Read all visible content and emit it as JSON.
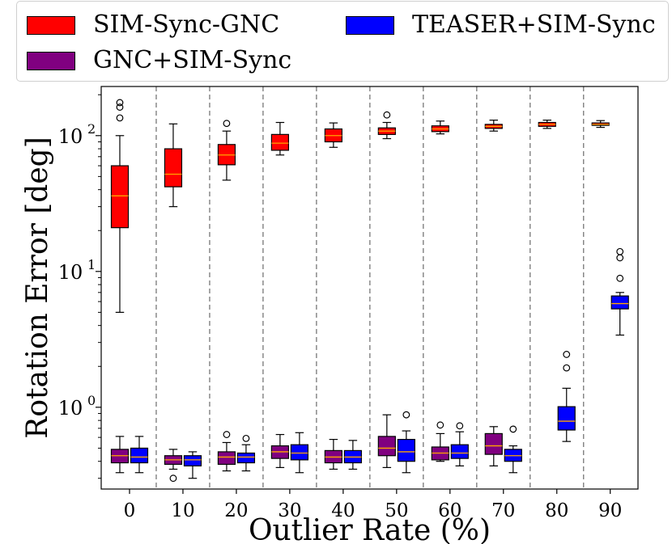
{
  "chart_data": {
    "type": "boxplot",
    "xlabel": "Outlier Rate (%)",
    "ylabel": "Rotation Error [deg]",
    "yscale": "log",
    "ylim": [
      0.25,
      230
    ],
    "categories": [
      "0",
      "10",
      "20",
      "30",
      "40",
      "50",
      "60",
      "70",
      "80",
      "90"
    ],
    "y_ticks": [
      {
        "value": 1,
        "base": "10",
        "exp": "0"
      },
      {
        "value": 10,
        "base": "10",
        "exp": "1"
      },
      {
        "value": 100,
        "base": "10",
        "exp": "2"
      }
    ],
    "legend": {
      "position": "top",
      "entries": [
        {
          "label": "SIM-Sync-GNC",
          "color": "#ff0000"
        },
        {
          "label": "TEASER+SIM-Sync",
          "color": "#0000ff"
        },
        {
          "label": "GNC+SIM-Sync",
          "color": "#800080"
        }
      ]
    },
    "median_color": "#ffa500",
    "series": [
      {
        "name": "SIM-Sync-GNC",
        "color": "#ff0000",
        "boxes": [
          {
            "category": "0",
            "whislo": 5.0,
            "q1": 21.0,
            "med": 36.0,
            "q3": 60.0,
            "whishi": 100.0,
            "fliers": [
              135,
              162,
              175
            ]
          },
          {
            "category": "10",
            "whislo": 30.0,
            "q1": 42.0,
            "med": 52.0,
            "q3": 80.0,
            "whishi": 122.0,
            "fliers": []
          },
          {
            "category": "20",
            "whislo": 47.0,
            "q1": 61.0,
            "med": 72.0,
            "q3": 86.0,
            "whishi": 108.0,
            "fliers": [
              123
            ]
          },
          {
            "category": "30",
            "whislo": 72.0,
            "q1": 78.0,
            "med": 88.0,
            "q3": 102.0,
            "whishi": 125.0,
            "fliers": []
          },
          {
            "category": "40",
            "whislo": 82.0,
            "q1": 90.0,
            "med": 100.0,
            "q3": 112.0,
            "whishi": 124.0,
            "fliers": []
          },
          {
            "category": "50",
            "whislo": 95.0,
            "q1": 102.0,
            "med": 108.0,
            "q3": 114.0,
            "whishi": 125.0,
            "fliers": [
              142
            ]
          },
          {
            "category": "60",
            "whislo": 103.0,
            "q1": 107.0,
            "med": 112.0,
            "q3": 118.0,
            "whishi": 128.0,
            "fliers": []
          },
          {
            "category": "70",
            "whislo": 108.0,
            "q1": 113.0,
            "med": 117.0,
            "q3": 121.0,
            "whishi": 130.0,
            "fliers": []
          },
          {
            "category": "80",
            "whislo": 113.0,
            "q1": 117.0,
            "med": 121.0,
            "q3": 125.0,
            "whishi": 130.0,
            "fliers": []
          },
          {
            "category": "90",
            "whislo": 115.0,
            "q1": 119.0,
            "med": 121.0,
            "q3": 124.0,
            "whishi": 129.0,
            "fliers": []
          }
        ]
      },
      {
        "name": "GNC+SIM-Sync",
        "color": "#800080",
        "boxes": [
          {
            "category": "0",
            "whislo": 0.33,
            "q1": 0.39,
            "med": 0.44,
            "q3": 0.49,
            "whishi": 0.61,
            "fliers": []
          },
          {
            "category": "10",
            "whislo": 0.35,
            "q1": 0.38,
            "med": 0.41,
            "q3": 0.44,
            "whishi": 0.49,
            "fliers": [
              0.3
            ]
          },
          {
            "category": "20",
            "whislo": 0.34,
            "q1": 0.38,
            "med": 0.43,
            "q3": 0.47,
            "whishi": 0.55,
            "fliers": [
              0.63
            ]
          },
          {
            "category": "30",
            "whislo": 0.36,
            "q1": 0.42,
            "med": 0.47,
            "q3": 0.52,
            "whishi": 0.63,
            "fliers": []
          },
          {
            "category": "40",
            "whislo": 0.35,
            "q1": 0.39,
            "med": 0.43,
            "q3": 0.48,
            "whishi": 0.58,
            "fliers": []
          },
          {
            "category": "50",
            "whislo": 0.36,
            "q1": 0.44,
            "med": 0.5,
            "q3": 0.61,
            "whishi": 0.88,
            "fliers": []
          },
          {
            "category": "60",
            "whislo": 0.4,
            "q1": 0.41,
            "med": 0.46,
            "q3": 0.51,
            "whishi": 0.64,
            "fliers": [
              0.74
            ]
          },
          {
            "category": "70",
            "whislo": 0.37,
            "q1": 0.45,
            "med": 0.52,
            "q3": 0.64,
            "whishi": 0.72,
            "fliers": []
          }
        ]
      },
      {
        "name": "TEASER+SIM-Sync",
        "color": "#0000ff",
        "boxes": [
          {
            "category": "0",
            "whislo": 0.33,
            "q1": 0.39,
            "med": 0.43,
            "q3": 0.5,
            "whishi": 0.61,
            "fliers": []
          },
          {
            "category": "10",
            "whislo": 0.3,
            "q1": 0.37,
            "med": 0.41,
            "q3": 0.44,
            "whishi": 0.47,
            "fliers": []
          },
          {
            "category": "20",
            "whislo": 0.34,
            "q1": 0.39,
            "med": 0.43,
            "q3": 0.46,
            "whishi": 0.53,
            "fliers": [
              0.59
            ]
          },
          {
            "category": "30",
            "whislo": 0.33,
            "q1": 0.41,
            "med": 0.46,
            "q3": 0.53,
            "whishi": 0.65,
            "fliers": []
          },
          {
            "category": "40",
            "whislo": 0.35,
            "q1": 0.39,
            "med": 0.43,
            "q3": 0.48,
            "whishi": 0.57,
            "fliers": []
          },
          {
            "category": "50",
            "whislo": 0.33,
            "q1": 0.4,
            "med": 0.47,
            "q3": 0.58,
            "whishi": 0.67,
            "fliers": [
              0.88
            ]
          },
          {
            "category": "60",
            "whislo": 0.37,
            "q1": 0.42,
            "med": 0.46,
            "q3": 0.53,
            "whishi": 0.66,
            "fliers": [
              0.73
            ]
          },
          {
            "category": "70",
            "whislo": 0.33,
            "q1": 0.4,
            "med": 0.44,
            "q3": 0.49,
            "whishi": 0.52,
            "fliers": [
              0.69
            ]
          },
          {
            "category": "80",
            "whislo": 0.56,
            "q1": 0.68,
            "med": 0.79,
            "q3": 1.01,
            "whishi": 1.38,
            "fliers": [
              1.95,
              2.45
            ]
          },
          {
            "category": "90",
            "whislo": 3.4,
            "q1": 5.3,
            "med": 5.8,
            "q3": 6.6,
            "whishi": 7.0,
            "fliers": [
              8.9,
              12.6,
              14.0
            ]
          }
        ]
      }
    ]
  }
}
